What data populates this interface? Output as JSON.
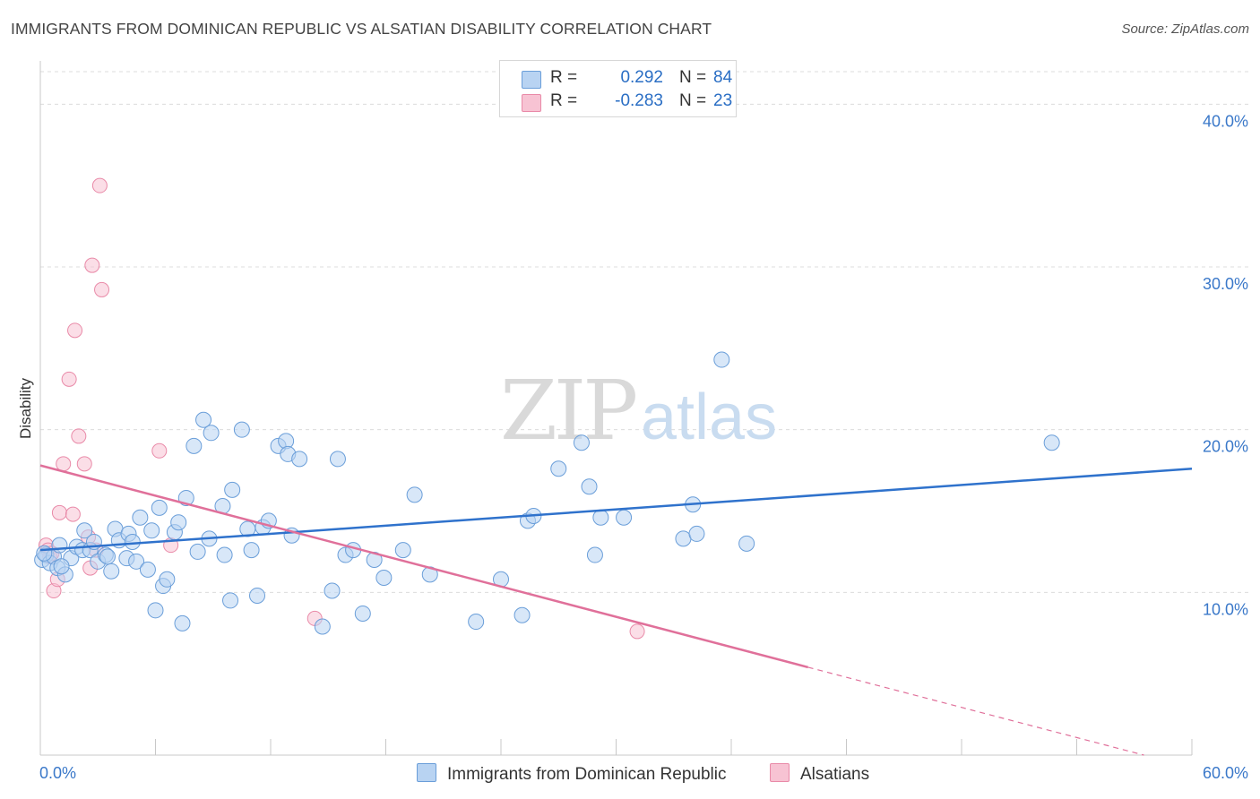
{
  "title": "IMMIGRANTS FROM DOMINICAN REPUBLIC VS ALSATIAN DISABILITY CORRELATION CHART",
  "source": "Source: ZipAtlas.com",
  "watermark": {
    "zip": "ZIP",
    "atlas": "atlas"
  },
  "legend": {
    "rows": [
      {
        "r_label": "R =",
        "r_value": "0.292",
        "n_label": "N =",
        "n_value": "84"
      },
      {
        "r_label": "R =",
        "r_value": "-0.283",
        "n_label": "N =",
        "n_value": "23"
      }
    ]
  },
  "colors": {
    "blue_fill": "#b8d3f2",
    "blue_stroke": "#6a9ed9",
    "blue_line": "#2f72cc",
    "pink_fill": "#f7c3d3",
    "pink_stroke": "#e98aa8",
    "pink_line": "#e0709a",
    "axis_label": "#3a78c9"
  },
  "chart_data": {
    "type": "scatter",
    "title": "IMMIGRANTS FROM DOMINICAN REPUBLIC VS ALSATIAN DISABILITY CORRELATION CHART",
    "xlabel": "",
    "ylabel": "Disability",
    "xlim": [
      0,
      60
    ],
    "ylim": [
      0,
      42
    ],
    "x_tick_labels": [
      "0.0%",
      "60.0%"
    ],
    "y_ticks": [
      10,
      20,
      30,
      40
    ],
    "y_tick_labels": [
      "10.0%",
      "20.0%",
      "30.0%",
      "40.0%"
    ],
    "grid": "horizontal dashed",
    "legend_position": "top-center",
    "series": [
      {
        "name": "Immigrants from Dominican Republic",
        "color": "#b8d3f2",
        "trend": {
          "x": [
            0,
            60
          ],
          "y": [
            12.6,
            17.6
          ]
        },
        "points": [
          [
            0.1,
            12.0
          ],
          [
            0.3,
            12.3
          ],
          [
            0.5,
            11.8
          ],
          [
            0.7,
            12.2
          ],
          [
            0.9,
            11.5
          ],
          [
            1.0,
            12.9
          ],
          [
            1.3,
            11.1
          ],
          [
            1.6,
            12.1
          ],
          [
            1.9,
            12.8
          ],
          [
            2.2,
            12.6
          ],
          [
            2.3,
            13.8
          ],
          [
            2.6,
            12.6
          ],
          [
            2.8,
            13.1
          ],
          [
            3.0,
            11.9
          ],
          [
            3.4,
            12.3
          ],
          [
            3.5,
            12.2
          ],
          [
            3.7,
            11.3
          ],
          [
            3.9,
            13.9
          ],
          [
            4.1,
            13.2
          ],
          [
            4.5,
            12.1
          ],
          [
            4.6,
            13.6
          ],
          [
            4.8,
            13.1
          ],
          [
            5.0,
            11.9
          ],
          [
            5.2,
            14.6
          ],
          [
            5.6,
            11.4
          ],
          [
            5.8,
            13.8
          ],
          [
            6.0,
            8.9
          ],
          [
            6.2,
            15.2
          ],
          [
            6.4,
            10.4
          ],
          [
            6.6,
            10.8
          ],
          [
            7.0,
            13.7
          ],
          [
            7.2,
            14.3
          ],
          [
            7.4,
            8.1
          ],
          [
            7.6,
            15.8
          ],
          [
            8.0,
            19.0
          ],
          [
            8.2,
            12.5
          ],
          [
            8.5,
            20.6
          ],
          [
            8.8,
            13.3
          ],
          [
            8.9,
            19.8
          ],
          [
            9.5,
            15.3
          ],
          [
            9.6,
            12.3
          ],
          [
            9.9,
            9.5
          ],
          [
            10.0,
            16.3
          ],
          [
            10.5,
            20.0
          ],
          [
            10.8,
            13.9
          ],
          [
            11.0,
            12.6
          ],
          [
            11.3,
            9.8
          ],
          [
            11.6,
            14.0
          ],
          [
            11.9,
            14.4
          ],
          [
            12.4,
            19.0
          ],
          [
            12.8,
            19.3
          ],
          [
            12.9,
            18.5
          ],
          [
            13.1,
            13.5
          ],
          [
            13.5,
            18.2
          ],
          [
            14.7,
            7.9
          ],
          [
            15.2,
            10.1
          ],
          [
            15.5,
            18.2
          ],
          [
            15.9,
            12.3
          ],
          [
            16.3,
            12.6
          ],
          [
            16.8,
            8.7
          ],
          [
            17.4,
            12.0
          ],
          [
            17.9,
            10.9
          ],
          [
            18.9,
            12.6
          ],
          [
            19.5,
            16.0
          ],
          [
            20.3,
            11.1
          ],
          [
            22.7,
            8.2
          ],
          [
            24.0,
            10.8
          ],
          [
            25.1,
            8.6
          ],
          [
            25.4,
            14.4
          ],
          [
            25.7,
            14.7
          ],
          [
            27.0,
            17.6
          ],
          [
            28.2,
            19.2
          ],
          [
            28.6,
            16.5
          ],
          [
            28.9,
            12.3
          ],
          [
            29.2,
            14.6
          ],
          [
            30.4,
            14.6
          ],
          [
            33.5,
            13.3
          ],
          [
            34.0,
            15.4
          ],
          [
            34.2,
            13.6
          ],
          [
            35.5,
            24.3
          ],
          [
            36.8,
            13.0
          ],
          [
            52.7,
            19.2
          ],
          [
            0.2,
            12.4
          ],
          [
            1.1,
            11.6
          ]
        ]
      },
      {
        "name": "Alsatians",
        "color": "#f7c3d3",
        "trend": {
          "x": [
            0,
            40
          ],
          "y": [
            17.8,
            5.4
          ]
        },
        "trend_dashed_to": {
          "x": [
            40,
            57.5
          ],
          "y": [
            5.4,
            0.0
          ]
        },
        "points": [
          [
            0.3,
            12.9
          ],
          [
            0.4,
            12.6
          ],
          [
            0.5,
            12.2
          ],
          [
            0.7,
            10.1
          ],
          [
            0.9,
            10.8
          ],
          [
            1.0,
            14.9
          ],
          [
            1.2,
            17.9
          ],
          [
            1.5,
            23.1
          ],
          [
            1.7,
            14.8
          ],
          [
            1.8,
            26.1
          ],
          [
            2.0,
            19.6
          ],
          [
            2.3,
            17.9
          ],
          [
            2.5,
            13.4
          ],
          [
            2.6,
            11.5
          ],
          [
            2.7,
            30.1
          ],
          [
            2.9,
            12.6
          ],
          [
            3.1,
            35.0
          ],
          [
            3.2,
            28.6
          ],
          [
            6.2,
            18.7
          ],
          [
            6.8,
            12.9
          ],
          [
            14.3,
            8.4
          ],
          [
            31.1,
            7.6
          ],
          [
            0.6,
            12.4
          ]
        ]
      }
    ]
  },
  "bottom_legend": {
    "series1": "Immigrants from Dominican Republic",
    "series2": "Alsatians"
  }
}
